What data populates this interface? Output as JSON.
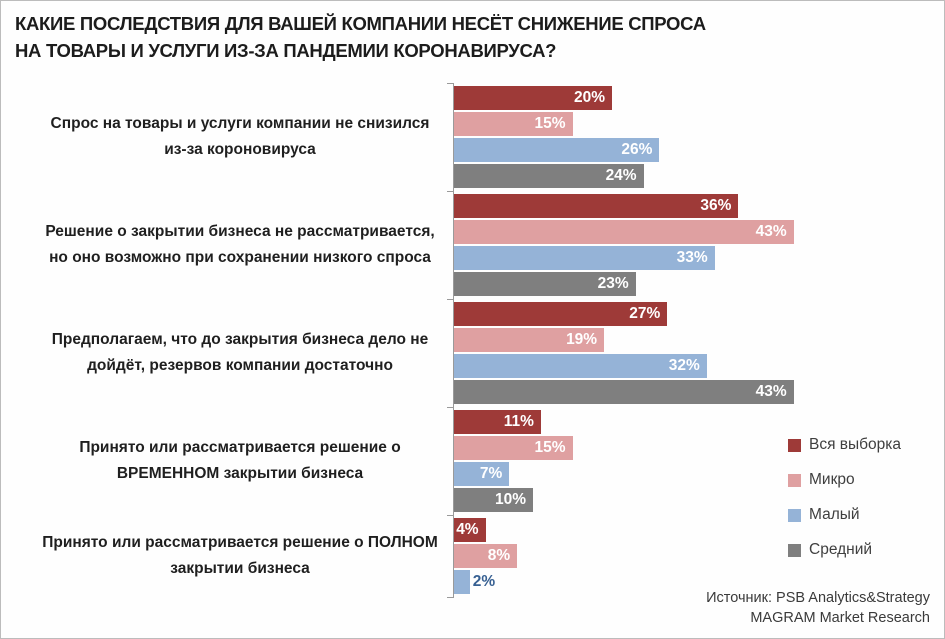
{
  "title_lines": [
    "КАКИЕ ПОСЛЕДСТВИЯ ДЛЯ ВАШЕЙ КОМПАНИИ НЕСЁТ СНИЖЕНИЕ СПРОСА",
    "НА ТОВАРЫ И УСЛУГИ ИЗ-ЗА ПАНДЕМИИ КОРОНАВИРУСА?"
  ],
  "source": {
    "line1": "Источник: PSB Analytics&Strategy",
    "line2": "MAGRAM Market Research"
  },
  "colors": {
    "axis": "#9a9a9a",
    "title_text": "#1c1c1c",
    "value_label_inside": "#ffffff",
    "value_label_outside": "#376092"
  },
  "chart_data": {
    "type": "bar",
    "orientation": "horizontal",
    "title": "КАКИЕ ПОСЛЕДСТВИЯ ДЛЯ ВАШЕЙ КОМПАНИИ НЕСЁТ СНИЖЕНИЕ СПРОСА НА ТОВАРЫ И УСЛУГИ ИЗ-ЗА ПАНДЕМИИ КОРОНАВИРУСА?",
    "value_unit": "%",
    "label_format": "{v}%",
    "xlim": [
      0,
      50
    ],
    "grid": false,
    "legend_position": "right",
    "categories": [
      "Спрос на товары и услуги компании не снизился из-за короновируса",
      "Решение о закрытии бизнеса не рассматривается, но оно возможно при сохранении низкого спроса",
      "Предполагаем, что до закрытия бизнеса дело не дойдёт, резервов компании достаточно",
      "Принято или рассматривается решение о ВРЕМЕННОМ закрытии бизнеса",
      "Принято или рассматривается решение о ПОЛНОМ закрытии бизнеса"
    ],
    "series": [
      {
        "name": "Вся выборка",
        "color": "#9E3A38",
        "values": [
          20,
          36,
          27,
          11,
          4
        ]
      },
      {
        "name": "Микро",
        "color": "#DFA0A1",
        "values": [
          15,
          43,
          19,
          15,
          8
        ]
      },
      {
        "name": "Малый",
        "color": "#95B3D7",
        "values": [
          26,
          33,
          32,
          7,
          2
        ]
      },
      {
        "name": "Средний",
        "color": "#7F7F7F",
        "values": [
          24,
          23,
          43,
          10,
          null
        ]
      }
    ],
    "outside_label": {
      "series": "Малый",
      "category_index": 4,
      "color": "#376092"
    }
  }
}
